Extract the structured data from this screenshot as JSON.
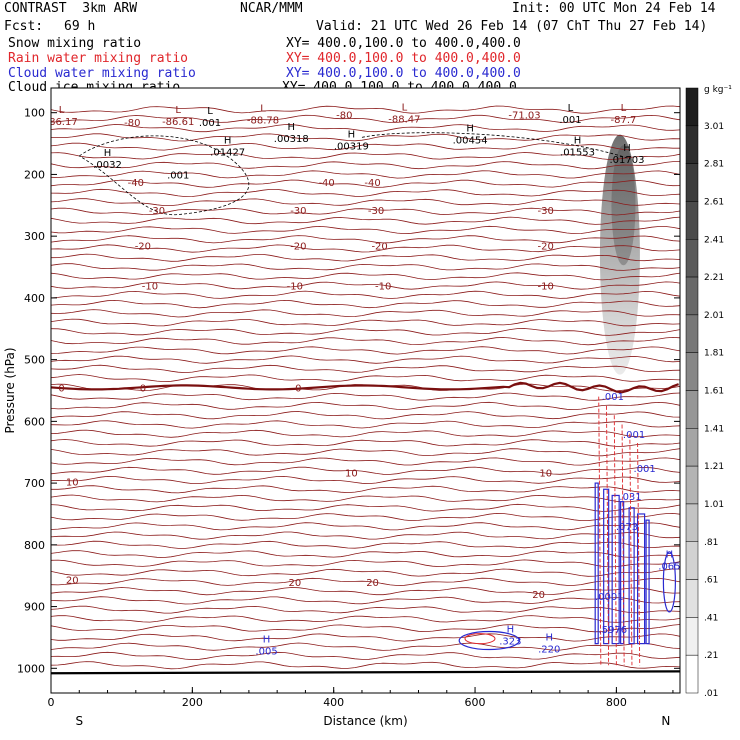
{
  "header": {
    "model": "CONTRAST  3km ARW",
    "center": "NCAR/MMM",
    "init": "Init: 00 UTC Mon 24 Feb 14",
    "fcst_label": "Fcst:",
    "fcst_value": "69 h",
    "valid": "Valid: 21 UTC Wed 26 Feb 14 (07 ChT Thu 27 Feb 14)"
  },
  "legend": [
    {
      "label": "Snow mixing ratio",
      "xy": "XY= 400.0,100.0 to 400.0,400.0",
      "color": "#000000"
    },
    {
      "label": "Rain water mixing ratio",
      "xy": "XY= 400.0,100.0 to 400.0,400.0",
      "color": "#e0262b"
    },
    {
      "label": "Cloud water mixing ratio",
      "xy": "XY= 400.0,100.0 to 400.0,400.0",
      "color": "#2a2ad0"
    },
    {
      "label": "Cloud ice mixing ratio",
      "xy": "XY= 400.0,100.0 to 400.0,400.0",
      "color": "#000000"
    }
  ],
  "colorbar": {
    "unit": "g kg⁻¹",
    "labels": [
      "3.01",
      "2.81",
      "2.61",
      "2.41",
      "2.21",
      "2.01",
      "1.81",
      "1.61",
      "1.41",
      "1.21",
      "1.01",
      ".81",
      ".61",
      ".41",
      ".21",
      ".01"
    ]
  },
  "chart_data": {
    "type": "contour",
    "xlabel": "Distance (km)",
    "ylabel": "Pressure (hPa)",
    "xlim": [
      0,
      890
    ],
    "ylim": [
      1040,
      60
    ],
    "x_ticks": [
      "0",
      "200",
      "400",
      "600",
      "800"
    ],
    "y_ticks": [
      "100",
      "200",
      "300",
      "400",
      "500",
      "600",
      "700",
      "800",
      "900",
      "1000"
    ],
    "x_end_labels": {
      "left": "S",
      "right": "N"
    },
    "temperature_isotherms": [
      {
        "value": -80,
        "label": "-80"
      },
      {
        "value": -40,
        "label": "-40"
      },
      {
        "value": -30,
        "label": "-30"
      },
      {
        "value": -20,
        "label": "-20"
      },
      {
        "value": -10,
        "label": "-10"
      },
      {
        "value": 0,
        "label": "0"
      },
      {
        "value": 10,
        "label": "10"
      },
      {
        "value": 20,
        "label": "20"
      }
    ],
    "extrema_labels": [
      {
        "sym": "L",
        "value": "-86.17",
        "x": 15,
        "p": 110
      },
      {
        "sym": "L",
        "value": "-86.61",
        "x": 180,
        "p": 110
      },
      {
        "sym": "L",
        "value": ".001",
        "x": 225,
        "p": 112
      },
      {
        "sym": "L",
        "value": "-88.78",
        "x": 300,
        "p": 108
      },
      {
        "sym": "",
        "value": "-80",
        "x": 415,
        "p": 100
      },
      {
        "sym": "L",
        "value": "-88.47",
        "x": 500,
        "p": 106
      },
      {
        "sym": "",
        "value": "-71.03",
        "x": 670,
        "p": 100
      },
      {
        "sym": "L",
        "value": ".001",
        "x": 735,
        "p": 107
      },
      {
        "sym": "L",
        "value": "-87.7",
        "x": 810,
        "p": 107
      },
      {
        "sym": "H",
        "value": ".00318",
        "x": 340,
        "p": 138
      },
      {
        "sym": "H",
        "value": ".00319",
        "x": 425,
        "p": 150
      },
      {
        "sym": "H",
        "value": ".00454",
        "x": 593,
        "p": 140
      },
      {
        "sym": "H",
        "value": ".01427",
        "x": 250,
        "p": 160
      },
      {
        "sym": "H",
        "value": ".01553",
        "x": 745,
        "p": 160
      },
      {
        "sym": "H",
        "value": ".01703",
        "x": 815,
        "p": 172
      },
      {
        "sym": "H",
        "value": ".0032",
        "x": 80,
        "p": 180
      },
      {
        "sym": "",
        "value": ".001",
        "x": 180,
        "p": 197
      },
      {
        "sym": "",
        "value": ".001",
        "x": 795,
        "p": 556
      },
      {
        "sym": "",
        "value": ".001",
        "x": 825,
        "p": 617
      },
      {
        "sym": "",
        "value": ".001",
        "x": 840,
        "p": 672
      },
      {
        "sym": "",
        "value": ".031",
        "x": 820,
        "p": 718
      },
      {
        "sym": "",
        "value": ".073",
        "x": 815,
        "p": 766
      },
      {
        "sym": "H",
        "value": ".065",
        "x": 875,
        "p": 830
      },
      {
        "sym": "",
        "value": ".0001",
        "x": 790,
        "p": 880
      },
      {
        "sym": "",
        "value": ".5976",
        "x": 795,
        "p": 933
      },
      {
        "sym": "H",
        "value": ".005",
        "x": 305,
        "p": 968
      },
      {
        "sym": "H",
        "value": ".323",
        "x": 650,
        "p": 952
      },
      {
        "sym": "H",
        "value": ".220",
        "x": 705,
        "p": 965
      }
    ]
  }
}
